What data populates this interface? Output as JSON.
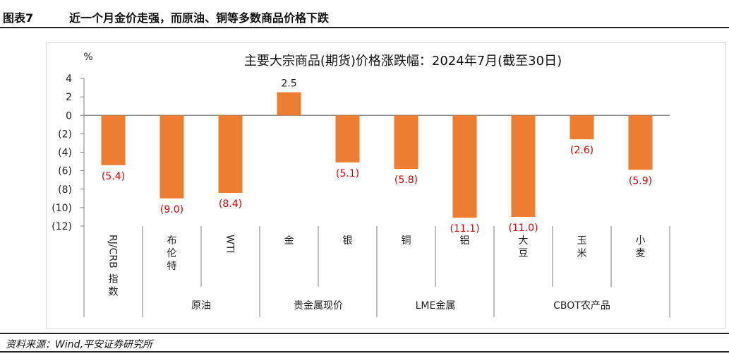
{
  "figure": {
    "label": "图表7",
    "title": "近一个月金价走强，而原油、铜等多数商品价格下跌",
    "source": "资料来源：Wind,平安证券研究所"
  },
  "colors": {
    "bar": "#ED7D31",
    "negative_label": "#E00000",
    "positive_label": "#222222",
    "axis": "#7f7f7f"
  },
  "chart_data": {
    "type": "bar",
    "title": "主要大宗商品(期货)价格涨跌幅：2024年7月(截至30日)",
    "unit_label": "%",
    "ylim": [
      -12,
      4
    ],
    "y_ticks": [
      4,
      2,
      0,
      -2,
      -4,
      -6,
      -8,
      -10,
      -12
    ],
    "y_tick_labels": [
      "4",
      "2",
      "0",
      "(2)",
      "(4)",
      "(6)",
      "(8)",
      "(10)",
      "(12)"
    ],
    "categories": [
      "RJ/CRB指数",
      "布伦特",
      "WTI",
      "金",
      "银",
      "铜",
      "铝",
      "大豆",
      "玉米",
      "小麦"
    ],
    "values": [
      -5.4,
      -9.0,
      -8.4,
      2.5,
      -5.1,
      -5.8,
      -11.1,
      -11.0,
      -2.6,
      -5.9
    ],
    "value_labels": [
      "(5.4)",
      "(9.0)",
      "(8.4)",
      "2.5",
      "(5.1)",
      "(5.8)",
      "(11.1)",
      "(11.0)",
      "(2.6)",
      "(5.9)"
    ],
    "groups": [
      {
        "label": "",
        "members": [
          "RJ/CRB指数"
        ]
      },
      {
        "label": "原油",
        "members": [
          "布伦特",
          "WTI"
        ]
      },
      {
        "label": "贵金属现价",
        "members": [
          "金",
          "银"
        ]
      },
      {
        "label": "LME金属",
        "members": [
          "铜",
          "铝"
        ]
      },
      {
        "label": "CBOT农产品",
        "members": [
          "大豆",
          "玉米",
          "小麦"
        ]
      }
    ],
    "grid": false,
    "legend": "none"
  }
}
